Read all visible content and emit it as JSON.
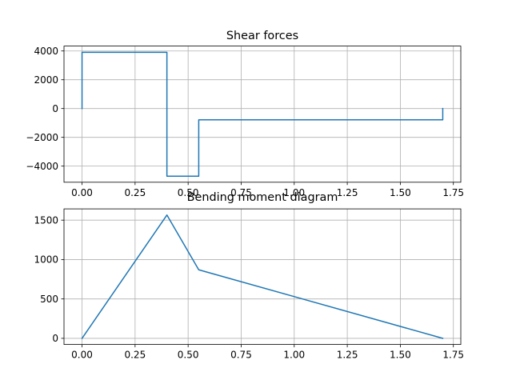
{
  "chart_data": [
    {
      "type": "line",
      "title": "Shear forces",
      "xlabel": "",
      "ylabel": "",
      "xlim": [
        -0.085,
        1.785
      ],
      "ylim": [
        -5120,
        4340
      ],
      "xticks": [
        0.0,
        0.25,
        0.5,
        0.75,
        1.0,
        1.25,
        1.5,
        1.75
      ],
      "xtick_labels": [
        "0.00",
        "0.25",
        "0.50",
        "0.75",
        "1.00",
        "1.25",
        "1.50",
        "1.75"
      ],
      "yticks": [
        -4000,
        -2000,
        0,
        2000,
        4000
      ],
      "ytick_labels": [
        "−4000",
        "−2000",
        "0",
        "2000",
        "4000"
      ],
      "grid": true,
      "color": "#1f77b4",
      "series": [
        {
          "x": [
            0.0,
            0.0,
            0.4,
            0.4,
            0.55,
            0.55,
            1.7,
            1.7
          ],
          "y": [
            0,
            3910,
            3910,
            -4700,
            -4700,
            -780,
            -780,
            0
          ]
        }
      ]
    },
    {
      "type": "line",
      "title": "Bending moment diagram",
      "xlabel": "",
      "ylabel": "",
      "xlim": [
        -0.085,
        1.785
      ],
      "ylim": [
        -78,
        1643
      ],
      "xticks": [
        0.0,
        0.25,
        0.5,
        0.75,
        1.0,
        1.25,
        1.5,
        1.75
      ],
      "xtick_labels": [
        "0.00",
        "0.25",
        "0.50",
        "0.75",
        "1.00",
        "1.25",
        "1.50",
        "1.75"
      ],
      "yticks": [
        0,
        500,
        1000,
        1500
      ],
      "ytick_labels": [
        "0",
        "500",
        "1000",
        "1500"
      ],
      "grid": true,
      "color": "#1f77b4",
      "series": [
        {
          "x": [
            0.0,
            0.4,
            0.55,
            1.7
          ],
          "y": [
            0,
            1565,
            870,
            0
          ]
        }
      ]
    }
  ]
}
